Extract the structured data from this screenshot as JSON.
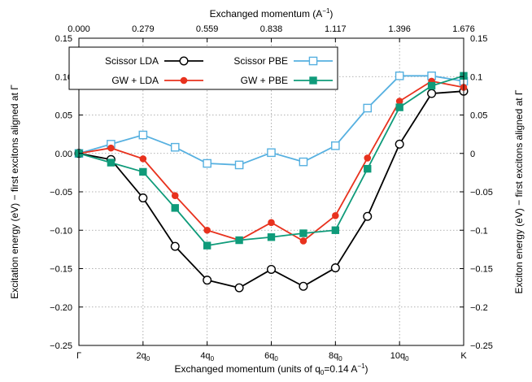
{
  "chart_data": {
    "type": "line",
    "xlabel_bottom": "Exchanged momentum (units of q",
    "xlabel_bottom_sub": "0",
    "xlabel_bottom_tail": "=0.14 A",
    "xlabel_bottom_sup": "−1",
    "xlabel_bottom_end": ")",
    "xlabel_top": "Exchanged momentum (A",
    "xlabel_top_sup": "−1",
    "xlabel_top_end": ")",
    "ylabel_left": "Excitation energy (eV) − first excitons aligned at Γ",
    "ylabel_right": "Exciton energy (eV) − first excitons aligned at Γ",
    "ylim": [
      -0.25,
      0.15
    ],
    "xlim": [
      0,
      12
    ],
    "y_ticks": [
      -0.25,
      -0.2,
      -0.15,
      -0.1,
      -0.05,
      0.0,
      0.05,
      0.1,
      0.15
    ],
    "y_tick_labels": [
      "−0.25",
      "−0.20",
      "−0.15",
      "−0.10",
      "−0.05",
      "0.00",
      "0.05",
      "0.10",
      "0.15"
    ],
    "y_tick_labels_right": [
      "−0.25",
      "−0.2",
      "−0.15",
      "−0.1",
      "−0.05",
      "0",
      "0.05",
      "0.1",
      "0.15"
    ],
    "x_ticks_bottom": [
      {
        "x": 0,
        "main": "Γ",
        "sub": ""
      },
      {
        "x": 2,
        "main": "2q",
        "sub": "0"
      },
      {
        "x": 4,
        "main": "4q",
        "sub": "0"
      },
      {
        "x": 6,
        "main": "6q",
        "sub": "0"
      },
      {
        "x": 8,
        "main": "8q",
        "sub": "0"
      },
      {
        "x": 10,
        "main": "10q",
        "sub": "0"
      },
      {
        "x": 12,
        "main": "K",
        "sub": ""
      }
    ],
    "x_ticks_top": [
      {
        "x": 0,
        "label": "0.000"
      },
      {
        "x": 2,
        "label": "0.279"
      },
      {
        "x": 4,
        "label": "0.559"
      },
      {
        "x": 6,
        "label": "0.838"
      },
      {
        "x": 8,
        "label": "1.117"
      },
      {
        "x": 10,
        "label": "1.396"
      },
      {
        "x": 12,
        "label": "1.676"
      }
    ],
    "grid": true,
    "legend_position": "top-left",
    "x": [
      0,
      1,
      2,
      3,
      4,
      5,
      6,
      7,
      8,
      9,
      10,
      11,
      12
    ],
    "series": [
      {
        "name": "Scissor LDA",
        "color": "#000000",
        "marker": "open-circle",
        "values": [
          0.0,
          -0.008,
          -0.058,
          -0.121,
          -0.165,
          -0.175,
          -0.151,
          -0.173,
          -0.149,
          -0.082,
          0.012,
          0.078,
          0.081
        ]
      },
      {
        "name": "GW + LDA",
        "color": "#e8321e",
        "marker": "filled-circle",
        "values": [
          0.0,
          0.007,
          -0.007,
          -0.055,
          -0.1,
          -0.113,
          -0.09,
          -0.114,
          -0.081,
          -0.006,
          0.068,
          0.094,
          0.086
        ]
      },
      {
        "name": "Scissor PBE",
        "color": "#56b0e0",
        "marker": "open-square",
        "values": [
          0.0,
          0.012,
          0.024,
          0.008,
          -0.013,
          -0.015,
          0.001,
          -0.011,
          0.01,
          0.059,
          0.101,
          0.101,
          0.094
        ]
      },
      {
        "name": "GW + PBE",
        "color": "#0f9b7a",
        "marker": "filled-square",
        "values": [
          0.0,
          -0.012,
          -0.024,
          -0.071,
          -0.12,
          -0.113,
          -0.109,
          -0.104,
          -0.1,
          -0.02,
          0.06,
          0.088,
          0.101
        ]
      }
    ]
  }
}
